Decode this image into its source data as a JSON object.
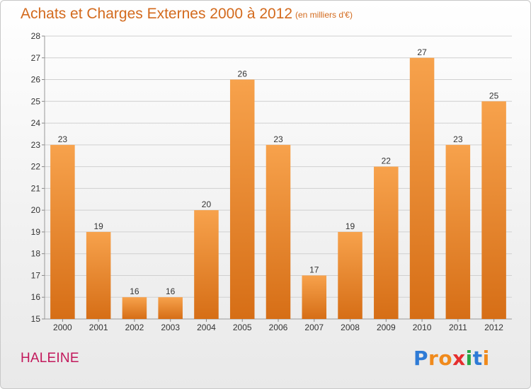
{
  "header": {
    "title": "Achats et Charges Externes 2000 à 2012",
    "unit": "(en milliers d'€)"
  },
  "footer": {
    "commune": "HALEINE",
    "logo": [
      "P",
      "r",
      "o",
      "x",
      "i",
      "t",
      "i"
    ],
    "logo_colors": [
      "#2e7bd6",
      "#f08a1c",
      "#f08a1c",
      "#e52e2e",
      "#28a745",
      "#2e7bd6",
      "#f08a1c"
    ]
  },
  "colors": {
    "bar_top": "#f7a24c",
    "bar_bottom": "#d66e16",
    "grid": "#d0d0d0",
    "axis_text": "#333333"
  },
  "chart_data": {
    "type": "bar",
    "title": "Achats et Charges Externes 2000 à 2012",
    "categories": [
      "2000",
      "2001",
      "2002",
      "2003",
      "2004",
      "2005",
      "2006",
      "2007",
      "2008",
      "2009",
      "2010",
      "2011",
      "2012"
    ],
    "values": [
      23,
      19,
      16,
      16,
      20,
      26,
      23,
      17,
      19,
      22,
      27,
      23,
      25
    ],
    "ylim": [
      15,
      28
    ],
    "yticks": [
      15,
      16,
      17,
      18,
      19,
      20,
      21,
      22,
      23,
      24,
      25,
      26,
      27,
      28
    ],
    "grid": true,
    "xlabel": "",
    "ylabel": ""
  }
}
